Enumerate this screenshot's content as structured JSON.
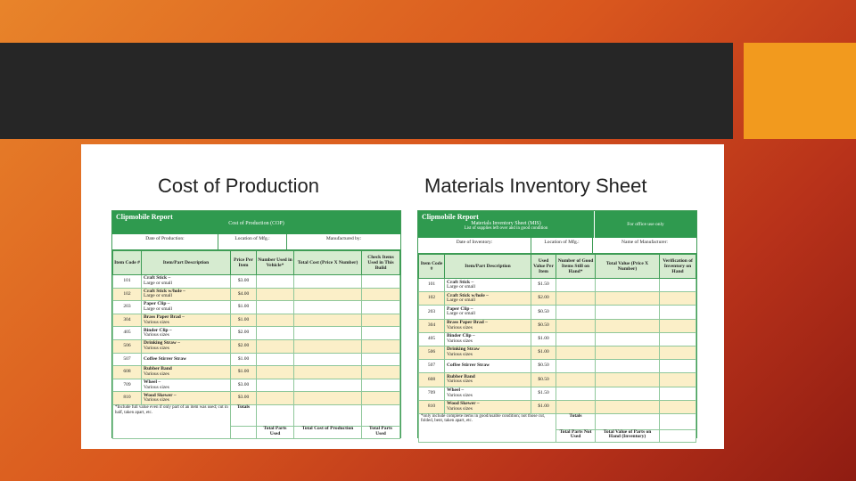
{
  "left_heading": "Cost of Production",
  "right_heading": "Materials Inventory Sheet",
  "cop": {
    "report": "Clipmobile Report",
    "subtitle": "Cost of Production (COP)",
    "date_label": "Date of Production:",
    "location_label": "Location of Mfg.:",
    "manufacturer_label": "Manufactured by:",
    "headers": [
      "Item Code #",
      "Item/Part Description",
      "Price Per Item",
      "Number Used in Vehicle*",
      "Total Cost (Price X Number)",
      "Check Items Used in This Build"
    ],
    "rows": [
      {
        "code": "101",
        "name": "Craft Stick –",
        "size": "Large or small",
        "price": "$3.00"
      },
      {
        "code": "102",
        "name": "Craft Stick w/hole –",
        "size": "Large or small",
        "price": "$4.00"
      },
      {
        "code": "203",
        "name": "Paper Clip –",
        "size": "Large or small",
        "price": "$1.00"
      },
      {
        "code": "304",
        "name": "Brass Paper Brad –",
        "size": "Various sizes",
        "price": "$1.00"
      },
      {
        "code": "405",
        "name": "Binder Clip –",
        "size": "Various sizes",
        "price": "$2.00"
      },
      {
        "code": "506",
        "name": "Drinking Straw –",
        "size": "Various sizes",
        "price": "$2.00"
      },
      {
        "code": "507",
        "name": "Coffee Stirrer Straw",
        "size": "",
        "price": "$1.00"
      },
      {
        "code": "608",
        "name": "Rubber Band",
        "size": "Various sizes",
        "price": "$1.00"
      },
      {
        "code": "709",
        "name": "Wheel –",
        "size": "Various sizes",
        "price": "$3.00"
      },
      {
        "code": "810",
        "name": "Wood Skewer –",
        "size": "Various sizes",
        "price": "$3.00"
      }
    ],
    "footnote": "*Include full value even if only part of an item was used; cut in half, taken apart, etc.",
    "totals_label": "Totals",
    "foot_parts": "Total Parts Used",
    "foot_cost": "Total Cost of Production",
    "foot_parts2": "Total Parts Used"
  },
  "mis": {
    "report": "Clipmobile Report",
    "subtitle": "Materials Inventory Sheet (MIS)",
    "subtitle2": "List of supplies left over and in good condition",
    "office": "For office use only",
    "date_label": "Date of Inventory:",
    "location_label": "Location of Mfg.:",
    "manufacturer_label": "Name of Manufacturer:",
    "headers": [
      "Item Code #",
      "Item/Part Description",
      "Used Value Per Item",
      "Number of Good Items Still on Hand*",
      "Total Value (Price X Number)",
      "Verification of Inventory on Hand"
    ],
    "rows": [
      {
        "code": "101",
        "name": "Craft Stick –",
        "size": "Large or small",
        "price": "$1.50"
      },
      {
        "code": "102",
        "name": "Craft Stick w/hole –",
        "size": "Large or small",
        "price": "$2.00"
      },
      {
        "code": "203",
        "name": "Paper Clip –",
        "size": "Large or small",
        "price": "$0.50"
      },
      {
        "code": "304",
        "name": "Brass Paper Brad –",
        "size": "Various sizes",
        "price": "$0.50"
      },
      {
        "code": "405",
        "name": "Binder Clip –",
        "size": "Various sizes",
        "price": "$1.00"
      },
      {
        "code": "506",
        "name": "Drinking Straw",
        "size": "Various sizes",
        "price": "$1.00"
      },
      {
        "code": "507",
        "name": "Coffee Stirrer Straw",
        "size": "",
        "price": "$0.50"
      },
      {
        "code": "608",
        "name": "Rubber Band",
        "size": "Various sizes",
        "price": "$0.50"
      },
      {
        "code": "709",
        "name": "Wheel –",
        "size": "Various sizes",
        "price": "$1.50"
      },
      {
        "code": "810",
        "name": "Wood Skewer –",
        "size": "Various sizes",
        "price": "$1.00"
      }
    ],
    "footnote": "*only include complete items in good/usable condition; not those cut, folded, bent, taken apart, etc.",
    "totals_label": "Totals",
    "foot_parts": "Total Parts Not Used",
    "foot_value": "Total Value of Parts on Hand (Inventory)"
  }
}
